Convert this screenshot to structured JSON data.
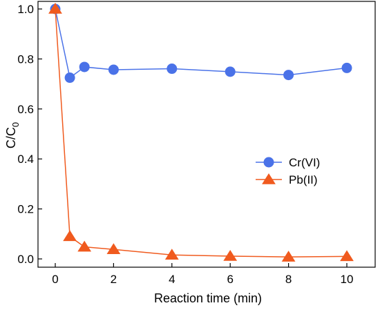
{
  "chart_data": {
    "type": "line",
    "xlabel": "Reaction time (min)",
    "ylabel_main": "C/C",
    "ylabel_sub": "0",
    "xlim": [
      0,
      10
    ],
    "ylim": [
      0,
      1
    ],
    "x_ticks": [
      "0",
      "2",
      "4",
      "6",
      "8",
      "10"
    ],
    "y_ticks": [
      "0.0",
      "0.2",
      "0.4",
      "0.6",
      "0.8",
      "1.0"
    ],
    "grid": false,
    "legend_position": "center-right",
    "series": [
      {
        "name": "Cr(VI)",
        "color": "#4a72e8",
        "marker": "circle",
        "x": [
          0,
          0.5,
          1,
          2,
          4,
          6,
          8,
          10
        ],
        "y": [
          1.0,
          0.725,
          0.768,
          0.757,
          0.761,
          0.749,
          0.736,
          0.764
        ]
      },
      {
        "name": "Pb(II)",
        "color": "#f05a1e",
        "marker": "triangle",
        "x": [
          0,
          0.5,
          1,
          2,
          4,
          6,
          8,
          10
        ],
        "y": [
          1.0,
          0.09,
          0.048,
          0.038,
          0.016,
          0.011,
          0.008,
          0.01
        ]
      }
    ]
  }
}
